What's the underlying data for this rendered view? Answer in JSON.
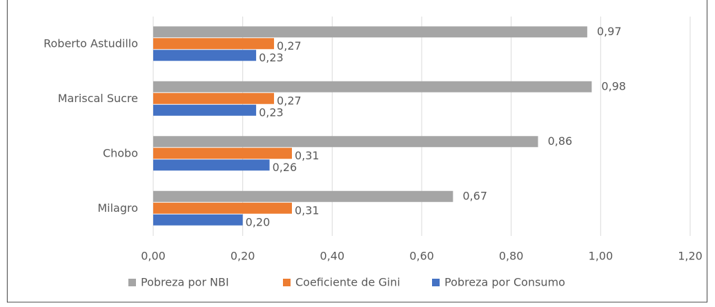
{
  "chart_data": {
    "type": "hbar",
    "categories": [
      "Roberto Astudillo",
      "Mariscal Sucre",
      "Chobo",
      "Milagro"
    ],
    "series": [
      {
        "name": "Pobreza por NBI",
        "color": "#a5a5a5",
        "values": [
          0.97,
          0.98,
          0.86,
          0.67
        ],
        "value_labels": [
          "0,97",
          "0,98",
          "0,86",
          "0,67"
        ]
      },
      {
        "name": "Coeficiente de Gini",
        "color": "#ed7d31",
        "values": [
          0.27,
          0.27,
          0.31,
          0.31
        ],
        "value_labels": [
          "0,27",
          "0,27",
          "0,31",
          "0,31"
        ]
      },
      {
        "name": "Pobreza por Consumo",
        "color": "#4472c4",
        "values": [
          0.23,
          0.23,
          0.26,
          0.2
        ],
        "value_labels": [
          "0,23",
          "0,23",
          "0,26",
          "0,20"
        ]
      }
    ],
    "xlim": [
      0,
      1.2
    ],
    "xticks": [
      {
        "value": 0,
        "label": "0,00"
      },
      {
        "value": 0.2,
        "label": "0,20"
      },
      {
        "value": 0.4,
        "label": "0,40"
      },
      {
        "value": 0.6,
        "label": "0,60"
      },
      {
        "value": 0.8,
        "label": "0,80"
      },
      {
        "value": 1.0,
        "label": "1,00"
      },
      {
        "value": 1.2,
        "label": "1,20"
      }
    ],
    "grid": true,
    "legend": "bottom"
  }
}
